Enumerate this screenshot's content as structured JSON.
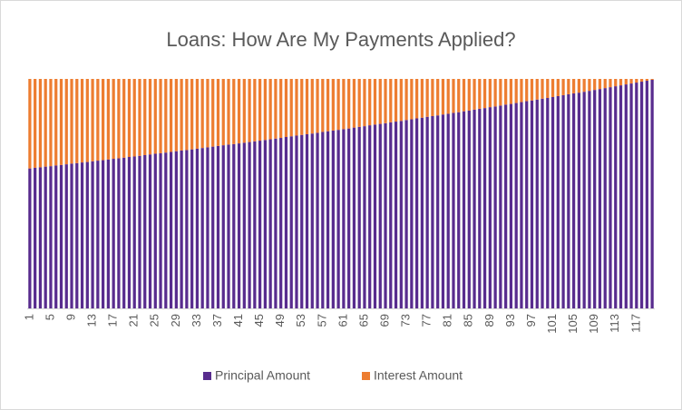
{
  "chart_data": {
    "type": "bar",
    "stacked": true,
    "title": "Loans: How Are My Payments Applied?",
    "categories": [
      1,
      null,
      null,
      null,
      5,
      null,
      null,
      null,
      9,
      null,
      null,
      null,
      13,
      null,
      null,
      null,
      17,
      null,
      null,
      null,
      21,
      null,
      null,
      null,
      25,
      null,
      null,
      null,
      29,
      null,
      null,
      null,
      33,
      null,
      null,
      null,
      37,
      null,
      null,
      null,
      41,
      null,
      null,
      null,
      45,
      null,
      null,
      null,
      49,
      null,
      null,
      null,
      53,
      null,
      null,
      null,
      57,
      null,
      null,
      null,
      61,
      null,
      null,
      null,
      65,
      null,
      null,
      null,
      69,
      null,
      null,
      null,
      73,
      null,
      null,
      null,
      77,
      null,
      null,
      null,
      81,
      null,
      null,
      null,
      85,
      null,
      null,
      null,
      89,
      null,
      null,
      null,
      93,
      null,
      null,
      null,
      97,
      null,
      null,
      null,
      101,
      null,
      null,
      null,
      105,
      null,
      null,
      null,
      109,
      null,
      null,
      null,
      113,
      null,
      null,
      null,
      117,
      null,
      null,
      null
    ],
    "series": [
      {
        "name": "Principal Amount",
        "color": "#582c8e",
        "values": [
          61.0,
          61.3,
          61.5,
          61.8,
          62.0,
          62.3,
          62.5,
          62.8,
          63.1,
          63.3,
          63.6,
          63.8,
          64.1,
          64.4,
          64.6,
          64.9,
          65.2,
          65.4,
          65.7,
          66.0,
          66.2,
          66.5,
          66.8,
          67.1,
          67.4,
          67.6,
          67.9,
          68.2,
          68.5,
          68.8,
          69.0,
          69.3,
          69.6,
          69.9,
          70.2,
          70.5,
          70.8,
          71.1,
          71.4,
          71.6,
          71.9,
          72.2,
          72.5,
          72.8,
          73.1,
          73.4,
          73.7,
          74.0,
          74.3,
          74.7,
          75.0,
          75.3,
          75.6,
          75.9,
          76.2,
          76.5,
          76.9,
          77.2,
          77.5,
          77.8,
          78.1,
          78.4,
          78.8,
          79.1,
          79.4,
          79.8,
          80.1,
          80.4,
          80.7,
          81.1,
          81.4,
          81.7,
          82.1,
          82.4,
          82.8,
          83.1,
          83.5,
          83.8,
          84.1,
          84.5,
          84.8,
          85.2,
          85.5,
          85.9,
          86.2,
          86.6,
          87.0,
          87.3,
          87.7,
          88.0,
          88.4,
          88.8,
          89.1,
          89.5,
          89.9,
          90.3,
          90.6,
          91.0,
          91.4,
          91.7,
          92.1,
          92.5,
          92.9,
          93.3,
          93.7,
          94.0,
          94.4,
          94.8,
          95.2,
          95.6,
          96.0,
          96.4,
          96.8,
          97.2,
          97.6,
          98.0,
          98.4,
          98.8,
          99.2,
          99.6
        ]
      },
      {
        "name": "Interest Amount",
        "color": "#ed7d31",
        "values": [
          39.0,
          38.7,
          38.5,
          38.2,
          38.0,
          37.7,
          37.5,
          37.2,
          36.9,
          36.7,
          36.4,
          36.2,
          35.9,
          35.6,
          35.4,
          35.1,
          34.8,
          34.6,
          34.3,
          34.0,
          33.8,
          33.5,
          33.2,
          32.9,
          32.6,
          32.4,
          32.1,
          31.8,
          31.5,
          31.2,
          31.0,
          30.7,
          30.4,
          30.1,
          29.8,
          29.5,
          29.2,
          28.9,
          28.6,
          28.4,
          28.1,
          27.8,
          27.5,
          27.2,
          26.9,
          26.6,
          26.3,
          26.0,
          25.7,
          25.3,
          25.0,
          24.7,
          24.4,
          24.1,
          23.8,
          23.5,
          23.1,
          22.8,
          22.5,
          22.2,
          21.9,
          21.6,
          21.2,
          20.9,
          20.6,
          20.2,
          19.9,
          19.6,
          19.3,
          18.9,
          18.6,
          18.3,
          17.9,
          17.6,
          17.2,
          16.9,
          16.5,
          16.2,
          15.9,
          15.5,
          15.2,
          14.8,
          14.5,
          14.1,
          13.8,
          13.4,
          13.0,
          12.7,
          12.3,
          12.0,
          11.6,
          11.2,
          10.9,
          10.5,
          10.1,
          9.7,
          9.4,
          9.0,
          8.6,
          8.3,
          7.9,
          7.5,
          7.1,
          6.7,
          6.3,
          6.0,
          5.6,
          5.2,
          4.8,
          4.4,
          4.0,
          3.6,
          3.2,
          2.8,
          2.4,
          2.0,
          1.6,
          1.2,
          0.8,
          0.4
        ]
      }
    ],
    "legend": "bottom"
  }
}
